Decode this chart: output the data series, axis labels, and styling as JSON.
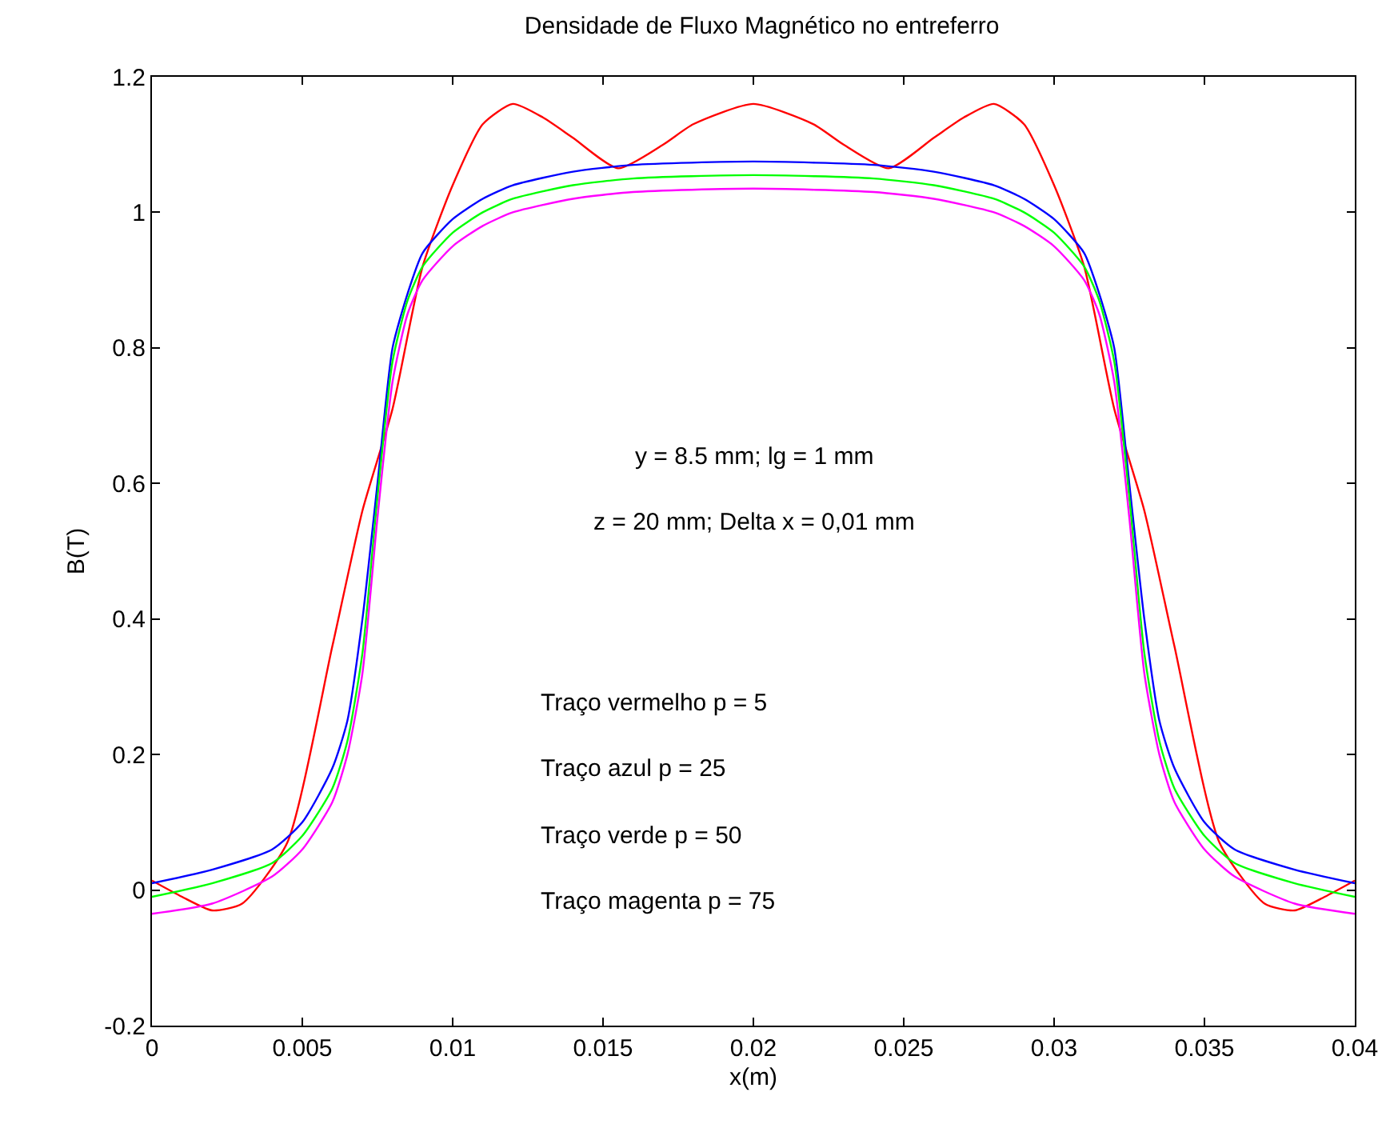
{
  "chart_data": {
    "type": "line",
    "title": "Densidade de Fluxo Magnético no entreferro",
    "xlabel": "x(m)",
    "ylabel": "B(T)",
    "x": [
      0,
      0.002,
      0.004,
      0.005,
      0.006,
      0.0065,
      0.007,
      0.0075,
      0.008,
      0.0085,
      0.009,
      0.01,
      0.011,
      0.012,
      0.014,
      0.016,
      0.02,
      0.024,
      0.026,
      0.028,
      0.029,
      0.03,
      0.031,
      0.0315,
      0.032,
      0.0325,
      0.033,
      0.0335,
      0.034,
      0.035,
      0.036,
      0.038,
      0.04
    ],
    "series": [
      {
        "color": "#ff0000",
        "x": [
          0,
          0.001,
          0.002,
          0.003,
          0.0045,
          0.006,
          0.007,
          0.008,
          0.009,
          0.01,
          0.011,
          0.012,
          0.013,
          0.014,
          0.0155,
          0.017,
          0.018,
          0.02,
          0.022,
          0.023,
          0.0245,
          0.026,
          0.027,
          0.028,
          0.029,
          0.03,
          0.031,
          0.032,
          0.033,
          0.034,
          0.0355,
          0.037,
          0.038,
          0.039,
          0.04
        ],
        "values": [
          0.014,
          -0.01,
          -0.03,
          -0.02,
          0.07,
          0.36,
          0.56,
          0.71,
          0.92,
          1.04,
          1.13,
          1.16,
          1.14,
          1.11,
          1.065,
          1.1,
          1.13,
          1.16,
          1.13,
          1.1,
          1.065,
          1.11,
          1.14,
          1.16,
          1.13,
          1.04,
          0.92,
          0.71,
          0.56,
          0.36,
          0.07,
          -0.02,
          -0.03,
          -0.01,
          0.014
        ]
      },
      {
        "color": "#0000ff",
        "values": [
          0.01,
          0.03,
          0.06,
          0.1,
          0.18,
          0.25,
          0.4,
          0.6,
          0.8,
          0.88,
          0.94,
          0.99,
          1.02,
          1.04,
          1.06,
          1.07,
          1.075,
          1.07,
          1.06,
          1.04,
          1.02,
          0.99,
          0.94,
          0.88,
          0.8,
          0.6,
          0.4,
          0.25,
          0.18,
          0.1,
          0.06,
          0.03,
          0.01
        ]
      },
      {
        "color": "#00ff00",
        "values": [
          -0.01,
          0.01,
          0.04,
          0.08,
          0.15,
          0.22,
          0.35,
          0.58,
          0.78,
          0.87,
          0.92,
          0.97,
          1.0,
          1.02,
          1.04,
          1.05,
          1.055,
          1.05,
          1.04,
          1.02,
          1.0,
          0.97,
          0.92,
          0.87,
          0.78,
          0.58,
          0.35,
          0.22,
          0.15,
          0.08,
          0.04,
          0.01,
          -0.01
        ]
      },
      {
        "color": "#ff00ff",
        "values": [
          -0.035,
          -0.02,
          0.02,
          0.06,
          0.13,
          0.2,
          0.32,
          0.55,
          0.75,
          0.85,
          0.9,
          0.95,
          0.98,
          1.0,
          1.02,
          1.03,
          1.035,
          1.03,
          1.02,
          1.0,
          0.98,
          0.95,
          0.9,
          0.85,
          0.75,
          0.55,
          0.32,
          0.2,
          0.13,
          0.06,
          0.02,
          -0.02,
          -0.035
        ]
      }
    ],
    "xlim": [
      0,
      0.04
    ],
    "xticks": [
      0,
      0.005,
      0.01,
      0.015,
      0.02,
      0.025,
      0.03,
      0.035,
      0.04
    ],
    "ylim": [
      -0.2,
      1.2
    ],
    "yticks": [
      -0.2,
      0,
      0.2,
      0.4,
      0.6,
      0.8,
      1,
      1.2
    ],
    "annotations": [
      "y = 8.5 mm; lg = 1 mm",
      "z = 20 mm; Delta x = 0,01 mm",
      "Traço vermelho p = 5",
      "Traço azul p = 25",
      "Traço verde p = 50",
      "Traço magenta p = 75"
    ],
    "marker": "none",
    "line_style": "solid"
  }
}
